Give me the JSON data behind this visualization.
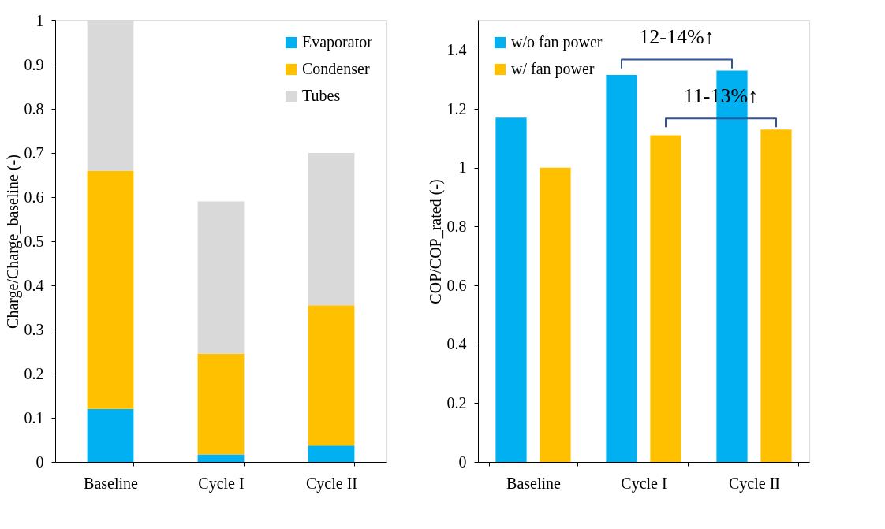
{
  "chart_data": [
    {
      "type": "bar",
      "stacked": true,
      "ylabel": "Charge/Charge_baseline (-)",
      "categories": [
        "Baseline",
        "Cycle I",
        "Cycle II"
      ],
      "ylim": [
        0,
        1
      ],
      "yticks": [
        0,
        0.1,
        0.2,
        0.3,
        0.4,
        0.5,
        0.6,
        0.7,
        0.8,
        0.9,
        1
      ],
      "grid": false,
      "legend": "top right",
      "series": [
        {
          "name": "Evaporator",
          "color": "#00b0f0",
          "values": [
            0.12,
            0.017,
            0.037
          ]
        },
        {
          "name": "Condenser",
          "color": "#ffc000",
          "values": [
            0.54,
            0.228,
            0.318
          ]
        },
        {
          "name": "Tubes",
          "color": "#d9d9d9",
          "values": [
            0.34,
            0.345,
            0.345
          ]
        }
      ]
    },
    {
      "type": "bar",
      "ylabel": "COP/COP_rated (-)",
      "categories": [
        "Baseline",
        "Cycle I",
        "Cycle II"
      ],
      "ylim": [
        0,
        1.5
      ],
      "yticks": [
        0,
        0.2,
        0.4,
        0.6,
        0.8,
        1,
        1.2,
        1.4
      ],
      "grid": false,
      "legend": "top left",
      "series": [
        {
          "name": "w/o fan power",
          "color": "#00b0f0",
          "values": [
            1.17,
            1.315,
            1.33
          ]
        },
        {
          "name": "w/ fan power",
          "color": "#ffc000",
          "values": [
            1.0,
            1.11,
            1.13
          ]
        }
      ],
      "annotations": [
        "12-14%↑",
        "11-13%↑"
      ]
    }
  ]
}
